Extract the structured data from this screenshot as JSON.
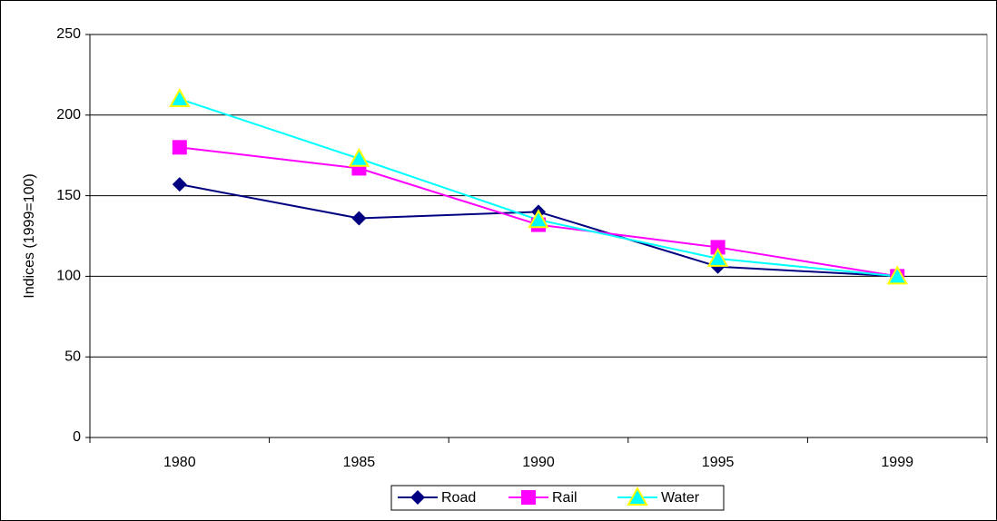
{
  "chart_data": {
    "type": "line",
    "y_label": "Indices (1999=100)",
    "categories": [
      "1980",
      "1985",
      "1990",
      "1995",
      "1999"
    ],
    "series": [
      {
        "name": "Road",
        "color": "#000080",
        "marker": "diamond",
        "values": [
          157,
          136,
          140,
          106,
          100
        ]
      },
      {
        "name": "Rail",
        "color": "#ff00ff",
        "marker": "square",
        "values": [
          180,
          167,
          132,
          118,
          100
        ]
      },
      {
        "name": "Water",
        "color": "#00ffff",
        "marker": "triangle",
        "values": [
          210,
          173,
          135,
          111,
          100
        ]
      }
    ],
    "ylim": [
      0,
      250
    ],
    "yticks": [
      0,
      50,
      100,
      150,
      200,
      250
    ],
    "grid": true,
    "legend": "bottom"
  }
}
